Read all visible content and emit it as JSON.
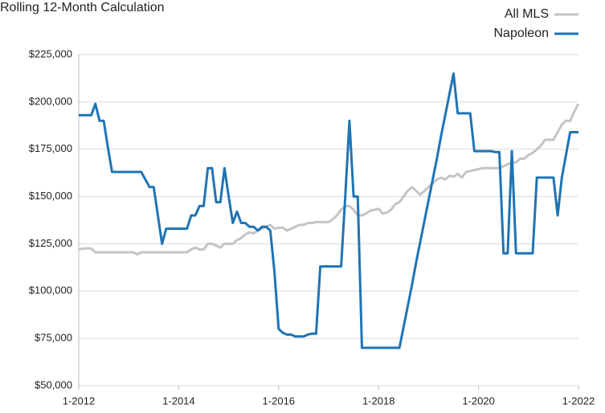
{
  "chart_data": {
    "type": "line",
    "title": "Rolling 12-Month Calculation",
    "categories": [
      "1-2012",
      null,
      null,
      null,
      null,
      null,
      null,
      null,
      null,
      null,
      null,
      null,
      null,
      null,
      null,
      null,
      null,
      null,
      null,
      null,
      null,
      null,
      null,
      null,
      "1-2014",
      null,
      null,
      null,
      null,
      null,
      null,
      null,
      null,
      null,
      null,
      null,
      null,
      null,
      null,
      null,
      null,
      null,
      null,
      null,
      null,
      null,
      null,
      null,
      "1-2016",
      null,
      null,
      null,
      null,
      null,
      null,
      null,
      null,
      null,
      null,
      null,
      null,
      null,
      null,
      null,
      null,
      null,
      null,
      null,
      null,
      null,
      null,
      null,
      "1-2018",
      null,
      null,
      null,
      null,
      null,
      null,
      null,
      null,
      null,
      null,
      null,
      null,
      null,
      null,
      null,
      null,
      null,
      null,
      null,
      null,
      null,
      null,
      null,
      "1-2020",
      null,
      null,
      null,
      null,
      null,
      null,
      null,
      null,
      null,
      null,
      null,
      null,
      null,
      null,
      null,
      null,
      null,
      null,
      null,
      null,
      null,
      null,
      null,
      "1-2022"
    ],
    "series": [
      {
        "name": "All MLS",
        "color": "#c4c4c4",
        "values": [
          122000,
          122500,
          122500,
          122500,
          120500,
          120500,
          120500,
          120500,
          120500,
          120500,
          120500,
          120500,
          120500,
          120500,
          119500,
          120500,
          120500,
          120500,
          120500,
          120500,
          120500,
          120500,
          120500,
          120500,
          120500,
          120500,
          120500,
          122000,
          123000,
          122000,
          122000,
          125000,
          125000,
          124000,
          123000,
          125000,
          125000,
          125000,
          127000,
          128000,
          130000,
          131000,
          130500,
          132000,
          133000,
          134000,
          135000,
          133000,
          133500,
          133500,
          132000,
          133000,
          134000,
          135000,
          135000,
          136000,
          136000,
          136500,
          136500,
          136500,
          136500,
          138000,
          140000,
          143000,
          145000,
          145000,
          143000,
          140000,
          140000,
          141000,
          142500,
          143000,
          143500,
          141000,
          141500,
          143000,
          146000,
          147000,
          150000,
          153000,
          155000,
          153000,
          151000,
          153000,
          155000,
          157000,
          159000,
          160000,
          159000,
          161000,
          160500,
          162000,
          160000,
          163000,
          163500,
          164000,
          164500,
          165000,
          165000,
          165000,
          165000,
          165000,
          166000,
          167000,
          168000,
          168000,
          170000,
          170000,
          172000,
          173000,
          175000,
          177000,
          180000,
          180000,
          180000,
          184000,
          188000,
          190000,
          190000,
          195000,
          199000
        ]
      },
      {
        "name": "Napoleon",
        "color": "#1f74b4",
        "values": [
          193000,
          193000,
          193000,
          193000,
          199000,
          190000,
          190000,
          176000,
          163000,
          163000,
          163000,
          163000,
          163000,
          163000,
          163000,
          163000,
          159000,
          155000,
          155000,
          140000,
          125000,
          133000,
          133000,
          133000,
          133000,
          133000,
          133000,
          140000,
          140000,
          145000,
          145000,
          165000,
          165000,
          147000,
          147000,
          165000,
          150000,
          136000,
          142000,
          136000,
          136000,
          134000,
          134000,
          132000,
          134000,
          134000,
          132000,
          110000,
          80000,
          78000,
          77000,
          77000,
          76000,
          76000,
          76000,
          77000,
          77500,
          77500,
          113000,
          113000,
          113000,
          113000,
          113000,
          113000,
          150000,
          190000,
          150000,
          150000,
          70000,
          70000,
          70000,
          70000,
          70000,
          70000,
          70000,
          70000,
          70000,
          70000,
          81000,
          92000,
          103000,
          115000,
          126000,
          137000,
          148000,
          159000,
          170000,
          182000,
          193000,
          204000,
          215000,
          194000,
          194000,
          194000,
          194000,
          174000,
          174000,
          174000,
          174000,
          174000,
          173500,
          173500,
          120000,
          120000,
          174000,
          120000,
          120000,
          120000,
          120000,
          120000,
          160000,
          160000,
          160000,
          160000,
          160000,
          140000,
          160000,
          172000,
          184000,
          184000,
          184000
        ]
      }
    ],
    "ylim": [
      50000,
      225000
    ],
    "yticks": [
      {
        "value": 50000,
        "label": "$50,000"
      },
      {
        "value": 75000,
        "label": "$75,000"
      },
      {
        "value": 100000,
        "label": "$100,000"
      },
      {
        "value": 125000,
        "label": "$125,000"
      },
      {
        "value": 150000,
        "label": "$150,000"
      },
      {
        "value": 175000,
        "label": "$175,000"
      },
      {
        "value": 200000,
        "label": "$200,000"
      },
      {
        "value": 225000,
        "label": "$225,000"
      }
    ],
    "grid": true,
    "legend": "top-right"
  }
}
